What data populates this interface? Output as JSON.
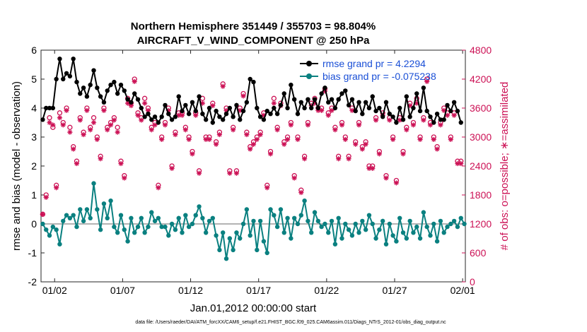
{
  "chart_data": {
    "type": "line",
    "title": "Northern Hemisphere 351449 / 355703 = 98.804%",
    "subtitle": "AIRCRAFT_V_WIND_COMPONENT @ 250 hPa",
    "xlabel": "Jan.01,2012 00:00:00 start",
    "ylabel": "rmse and bias (model - observation)",
    "ylabel_right": "# of obs: o=possible; ∗=assimilated",
    "footer": "data file: /Users/raeder/DAI/ATM_forcXX/CAM6_setup/f.e21.FHIST_BGC.f09_025.CAM6assim.011/Diags_NTrS_2012-01/obs_diag_output.nc",
    "xlim": [
      0,
      31.2
    ],
    "ylim": [
      -2,
      6
    ],
    "ylim_right": [
      0,
      4800
    ],
    "x_ticks": [
      1,
      6,
      11,
      16,
      21,
      26,
      31
    ],
    "x_tick_labels": [
      "01/02",
      "01/07",
      "01/12",
      "01/17",
      "01/22",
      "01/27",
      "02/01"
    ],
    "y_ticks": [
      -2,
      -1,
      0,
      1,
      2,
      3,
      4,
      5,
      6
    ],
    "y_tick_labels": [
      "-2",
      "-1",
      "0",
      "1",
      "2",
      "3",
      "4",
      "5",
      "6"
    ],
    "y_ticks_right": [
      0,
      600,
      1200,
      1800,
      2400,
      3000,
      3600,
      4200,
      4800
    ],
    "y_tick_labels_right": [
      "0",
      "600",
      "1200",
      "1800",
      "2400",
      "3000",
      "3600",
      "4200",
      "4800"
    ],
    "zero_line": 0,
    "legend": [
      "rmse grand pr = 4.2294",
      "bias grand pr = -0.075238"
    ],
    "colors": {
      "rmse": "#000000",
      "bias": "#0a8080",
      "obs": "#cc1155",
      "zero": "#b4b4b4",
      "legend_text": "#1a4fd6"
    },
    "series": [
      {
        "name": "rmse",
        "x_start": 0.125,
        "x_step": 0.25,
        "values": [
          3.6,
          4.0,
          4.0,
          4.0,
          5.0,
          5.7,
          5.0,
          5.2,
          5.1,
          5.7,
          4.9,
          4.5,
          4.7,
          4.4,
          4.8,
          5.3,
          4.7,
          4.4,
          4.2,
          4.6,
          4.8,
          4.9,
          4.5,
          4.8,
          4.6,
          4.3,
          4.2,
          4.5,
          4.3,
          4.0,
          3.7,
          3.8,
          3.6,
          3.7,
          3.5,
          3.7,
          4.1,
          3.8,
          3.6,
          3.7,
          4.4,
          3.9,
          4.1,
          3.8,
          4.2,
          3.9,
          4.4,
          3.8,
          3.6,
          4.0,
          3.5,
          3.9,
          3.7,
          3.6,
          3.8,
          4.0,
          3.7,
          4.1,
          3.6,
          3.9,
          4.2,
          5.0,
          4.9,
          4.0,
          3.7,
          3.6,
          3.9,
          3.8,
          4.0,
          3.8,
          4.1,
          4.5,
          4.0,
          4.8,
          4.3,
          3.8,
          4.2,
          4.0,
          4.3,
          4.0,
          4.3,
          4.0,
          4.5,
          4.7,
          4.2,
          4.3,
          4.0,
          4.3,
          4.5,
          4.6,
          4.1,
          4.3,
          3.9,
          4.2,
          3.8,
          4.2,
          4.0,
          4.4,
          3.9,
          4.0,
          3.7,
          4.2,
          3.8,
          3.7,
          3.5,
          4.0,
          3.6,
          4.4,
          3.7,
          4.0,
          4.5,
          3.9,
          4.7,
          3.9,
          3.7,
          3.5,
          3.8,
          3.6,
          3.6,
          4.1,
          3.9,
          4.2,
          3.9,
          3.5
        ]
      },
      {
        "name": "bias",
        "x_start": 0.125,
        "x_step": 0.25,
        "values": [
          0.0,
          -0.2,
          -0.4,
          -0.1,
          -0.2,
          -0.7,
          0.1,
          0.3,
          0.2,
          0.3,
          -0.1,
          0.5,
          0.1,
          0.5,
          0.2,
          1.4,
          0.5,
          -0.2,
          0.7,
          0.2,
          0.8,
          -0.1,
          -0.3,
          0.3,
          -0.2,
          -0.6,
          0.2,
          -0.3,
          -0.1,
          0.2,
          -0.3,
          -0.1,
          0.4,
          0.1,
          0.2,
          -0.1,
          -0.1,
          -0.4,
          0.0,
          -0.2,
          0.2,
          -0.3,
          0.3,
          -0.1,
          0.0,
          0.3,
          0.6,
          0.2,
          -0.3,
          0.1,
          0.2,
          -0.4,
          -0.9,
          -0.3,
          -1.2,
          -0.5,
          -0.9,
          -0.3,
          -0.5,
          0.0,
          0.5,
          -0.4,
          0.1,
          -0.9,
          0.1,
          -0.6,
          -1.0,
          0.5,
          0.3,
          -0.1,
          0.5,
          -0.3,
          0.2,
          -0.5,
          0.2,
          0.0,
          0.3,
          0.8,
          0.1,
          -0.3,
          0.4,
          0.1,
          -0.1,
          0.0,
          -0.3,
          0.1,
          -0.7,
          0.2,
          -0.5,
          0.0,
          -0.2,
          -0.4,
          0.0,
          -0.3,
          0.1,
          -0.2,
          0.3,
          0.0,
          -0.5,
          -0.2,
          0.1,
          -0.7,
          0.0,
          -0.4,
          -0.6,
          0.2,
          -0.3,
          -0.5,
          0.1,
          -0.3,
          -0.1,
          -0.5,
          0.4,
          -0.1,
          -0.4,
          0.0,
          -0.6,
          0.1,
          -0.3,
          -0.1,
          0.0,
          0.1,
          -0.1,
          0.2,
          0.0
        ]
      },
      {
        "name": "obs_possible",
        "axis": "right",
        "x_start": 0.125,
        "x_step": 0.25,
        "values": [
          1400,
          1800,
          3400,
          3200,
          2000,
          3500,
          3300,
          3600,
          3200,
          2800,
          2500,
          3400,
          3100,
          3600,
          3200,
          3400,
          3000,
          2600,
          3600,
          3200,
          3300,
          3400,
          3200,
          2500,
          2200,
          3800,
          3700,
          4200,
          3500,
          3400,
          3800,
          3600,
          3200,
          3300,
          2000,
          3000,
          3300,
          3600,
          2400,
          3100,
          3500,
          3500,
          3200,
          3000,
          2700,
          3500,
          2300,
          3800,
          3000,
          3000,
          3700,
          2900,
          3100,
          4100,
          3600,
          2300,
          3200,
          2300,
          3600,
          3900,
          3100,
          2800,
          2900,
          3000,
          3100,
          3500,
          2000,
          2700,
          3800,
          3200,
          3700,
          2900,
          3000,
          3300,
          2200,
          3000,
          1900,
          2600,
          3300,
          3700,
          3800,
          3600,
          3600,
          4000,
          3500,
          3600,
          3200,
          2600,
          3300,
          3000,
          2600,
          3600,
          2900,
          3300,
          2800,
          2900,
          2400,
          2400,
          3400,
          2700,
          3500,
          2200,
          3400,
          3000,
          2100,
          3400,
          2700,
          3200,
          3700,
          3300,
          3800,
          3000,
          3400,
          4200,
          3300,
          3000,
          2800,
          3300,
          3600,
          3500,
          3000,
          3500,
          2500,
          2500
        ]
      },
      {
        "name": "obs_assimilated",
        "axis": "right",
        "x_start": 0.125,
        "x_step": 0.25,
        "values": [
          1400,
          1750,
          3300,
          3250,
          1950,
          3400,
          3250,
          3550,
          3100,
          2750,
          2450,
          3350,
          3050,
          3550,
          3150,
          3300,
          2950,
          2550,
          3550,
          3150,
          3250,
          3350,
          3100,
          2450,
          2150,
          3700,
          3650,
          4150,
          3450,
          3350,
          3700,
          3550,
          3150,
          3250,
          1950,
          2950,
          3250,
          3550,
          2350,
          3050,
          3450,
          3450,
          3150,
          2950,
          2650,
          3450,
          2250,
          3700,
          2950,
          2950,
          3650,
          2850,
          3050,
          4050,
          3550,
          2250,
          3150,
          2250,
          3550,
          3850,
          3050,
          2750,
          2850,
          2950,
          3050,
          3450,
          1950,
          2650,
          3700,
          3150,
          3650,
          2850,
          2950,
          3250,
          2150,
          2950,
          1850,
          2550,
          3250,
          3650,
          3700,
          3550,
          3550,
          3950,
          3450,
          3550,
          3150,
          2550,
          3250,
          2950,
          2550,
          3550,
          2850,
          3250,
          2750,
          2850,
          2350,
          2350,
          3350,
          2650,
          3450,
          2150,
          3350,
          2950,
          2050,
          3350,
          2650,
          3150,
          3650,
          3250,
          3700,
          2950,
          3350,
          4150,
          3250,
          2950,
          2750,
          3250,
          3550,
          3450,
          2950,
          3450,
          2450,
          2450
        ]
      }
    ]
  }
}
